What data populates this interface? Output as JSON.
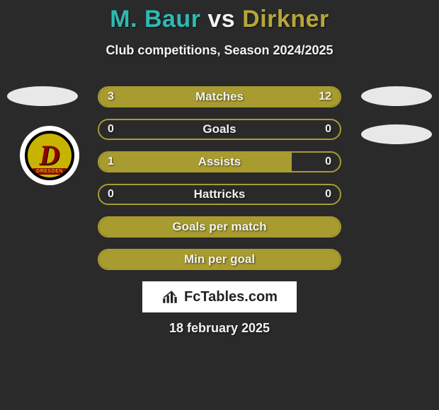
{
  "title": {
    "player1": "M. Baur",
    "vs": "vs",
    "player2": "Dirkner",
    "player1_color": "#2fb9b3",
    "player2_color": "#b7a63a"
  },
  "subtitle": "Club competitions, Season 2024/2025",
  "club_badge": {
    "letter": "D",
    "banner": "DRESDEN",
    "outer_bg": "#ffffff",
    "ring_color": "#000000",
    "inner_bg": "#c8b400",
    "letter_color": "#8b0000"
  },
  "bars": {
    "border_color": "#a89b2f",
    "fill_color": "#a89b2f",
    "label_color": "#f2f2f2",
    "value_color": "#f2f2f2",
    "rows": [
      {
        "label": "Matches",
        "left_val": "3",
        "right_val": "12",
        "left_pct": 20,
        "right_pct": 80,
        "show_vals": true,
        "full_fill": false
      },
      {
        "label": "Goals",
        "left_val": "0",
        "right_val": "0",
        "left_pct": 0,
        "right_pct": 0,
        "show_vals": true,
        "full_fill": false
      },
      {
        "label": "Assists",
        "left_val": "1",
        "right_val": "0",
        "left_pct": 80,
        "right_pct": 0,
        "show_vals": true,
        "full_fill": false
      },
      {
        "label": "Hattricks",
        "left_val": "0",
        "right_val": "0",
        "left_pct": 0,
        "right_pct": 0,
        "show_vals": true,
        "full_fill": false
      },
      {
        "label": "Goals per match",
        "left_val": "",
        "right_val": "",
        "left_pct": 0,
        "right_pct": 0,
        "show_vals": false,
        "full_fill": true
      },
      {
        "label": "Min per goal",
        "left_val": "",
        "right_val": "",
        "left_pct": 0,
        "right_pct": 0,
        "show_vals": false,
        "full_fill": true
      }
    ]
  },
  "fctables_label": "FcTables.com",
  "date": "18 february 2025",
  "background_color": "#2a2a2a"
}
